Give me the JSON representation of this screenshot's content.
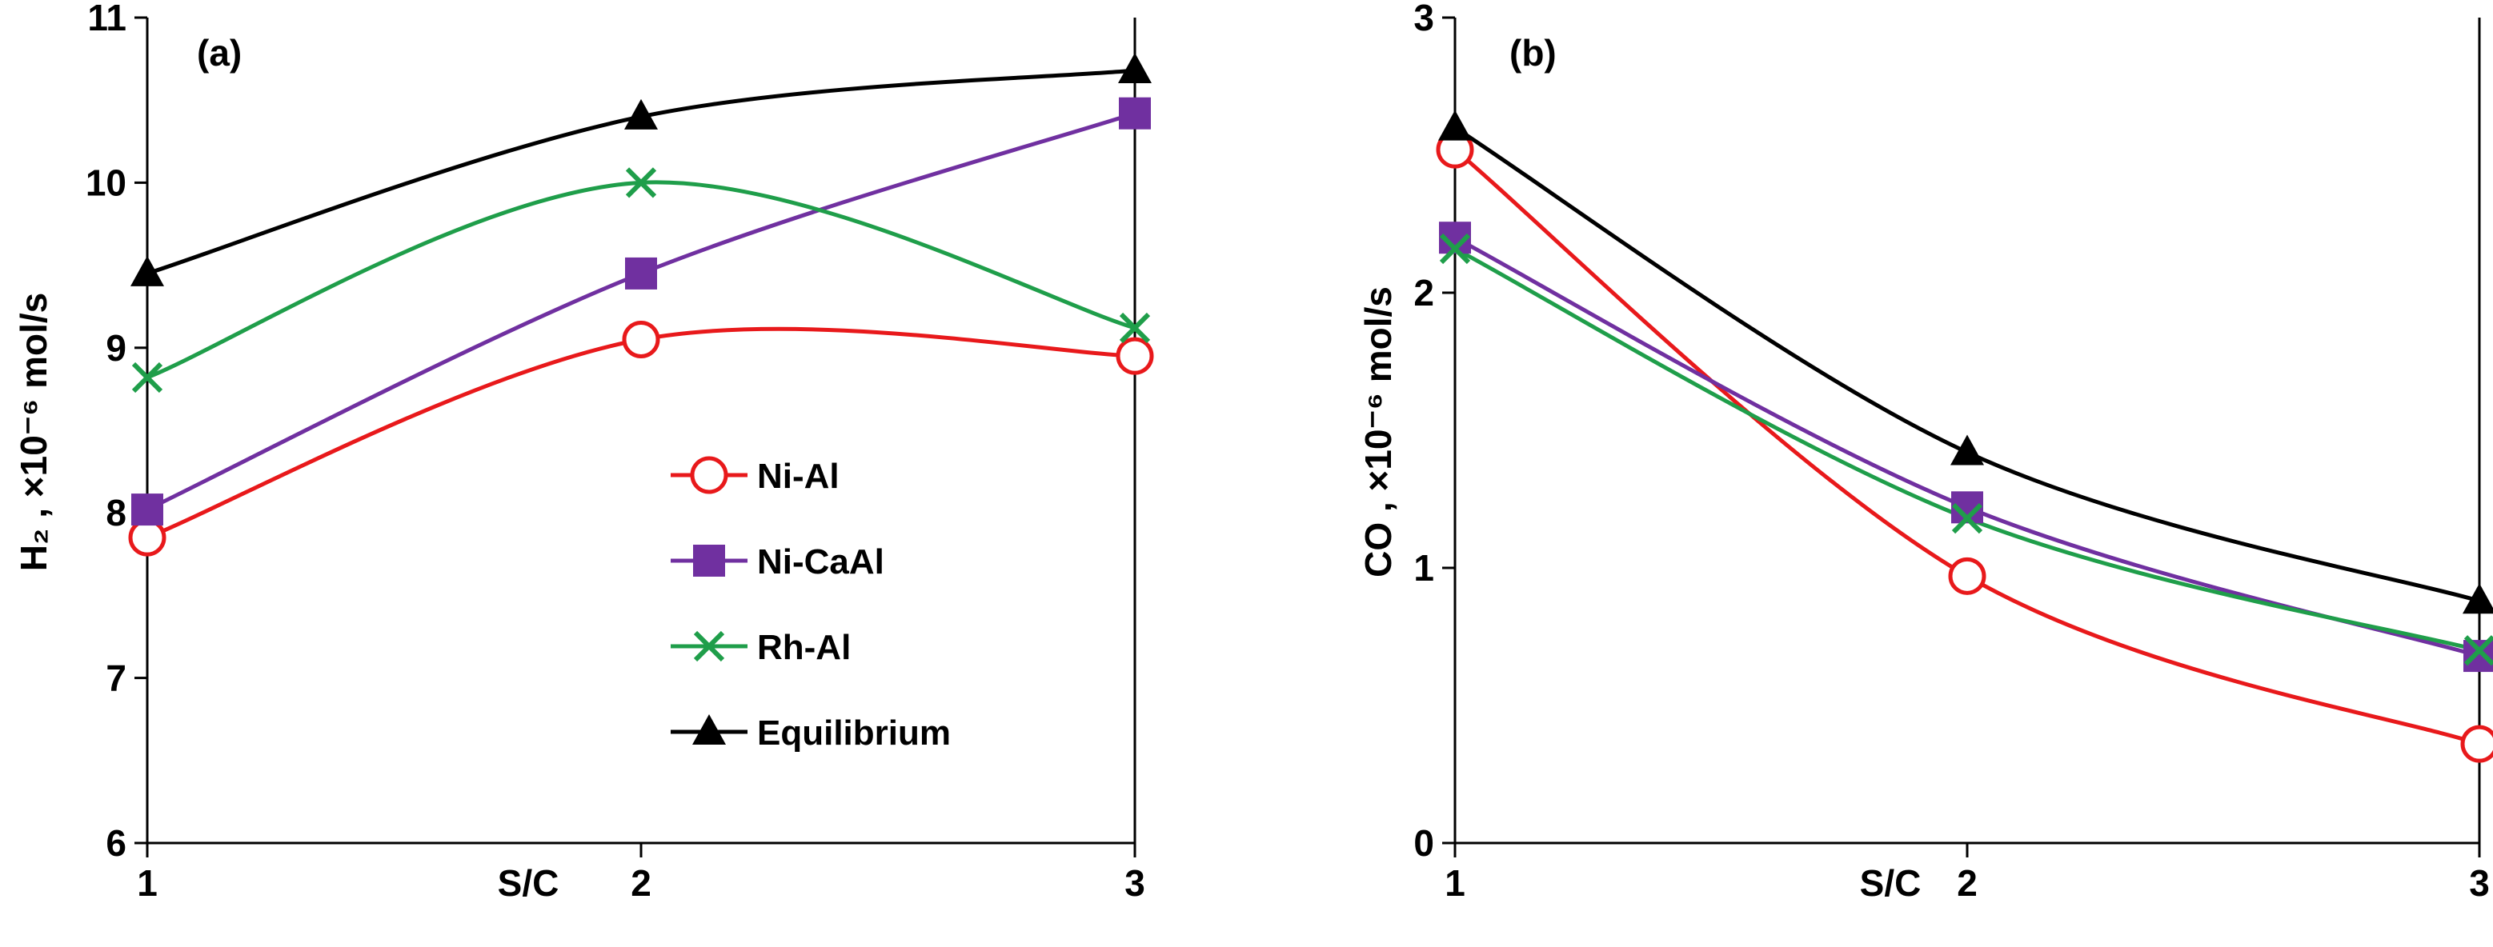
{
  "chart_data": [
    {
      "type": "line",
      "panel_label": "(a)",
      "x": [
        1,
        2,
        3
      ],
      "x_ticks": [
        "1",
        "2",
        "3"
      ],
      "xlabel": "S/C",
      "ylabel": "H₂ , ×10⁻⁶ mol/s",
      "ylim": [
        6,
        11
      ],
      "y_ticks": [
        "6",
        "7",
        "8",
        "9",
        "10",
        "11"
      ],
      "legend": "center",
      "series": [
        {
          "name": "Ni-Al",
          "values": [
            7.85,
            9.05,
            8.95
          ],
          "color": "#e8191b",
          "marker": "circle"
        },
        {
          "name": "Ni-CaAl",
          "values": [
            8.02,
            9.45,
            10.42
          ],
          "color": "#7030a0",
          "marker": "square"
        },
        {
          "name": "Rh-Al",
          "values": [
            8.82,
            10.0,
            9.12
          ],
          "color": "#1f9e4a",
          "marker": "x"
        },
        {
          "name": "Equilibrium",
          "values": [
            9.45,
            10.4,
            10.68
          ],
          "color": "#000000",
          "marker": "triangle"
        }
      ]
    },
    {
      "type": "line",
      "panel_label": "(b)",
      "x": [
        1,
        2,
        3
      ],
      "x_ticks": [
        "1",
        "2",
        "3"
      ],
      "xlabel": "S/C",
      "ylabel": "CO , ×10⁻⁶ mol/s",
      "ylim": [
        0,
        3
      ],
      "y_ticks": [
        "0",
        "1",
        "2",
        "3"
      ],
      "series": [
        {
          "name": "Ni-Al",
          "values": [
            2.52,
            0.97,
            0.36
          ],
          "color": "#e8191b",
          "marker": "circle"
        },
        {
          "name": "Ni-CaAl",
          "values": [
            2.2,
            1.22,
            0.68
          ],
          "color": "#7030a0",
          "marker": "square"
        },
        {
          "name": "Rh-Al",
          "values": [
            2.16,
            1.18,
            0.7
          ],
          "color": "#1f9e4a",
          "marker": "x"
        },
        {
          "name": "Equilibrium",
          "values": [
            2.6,
            1.42,
            0.88
          ],
          "color": "#000000",
          "marker": "triangle"
        }
      ]
    }
  ]
}
